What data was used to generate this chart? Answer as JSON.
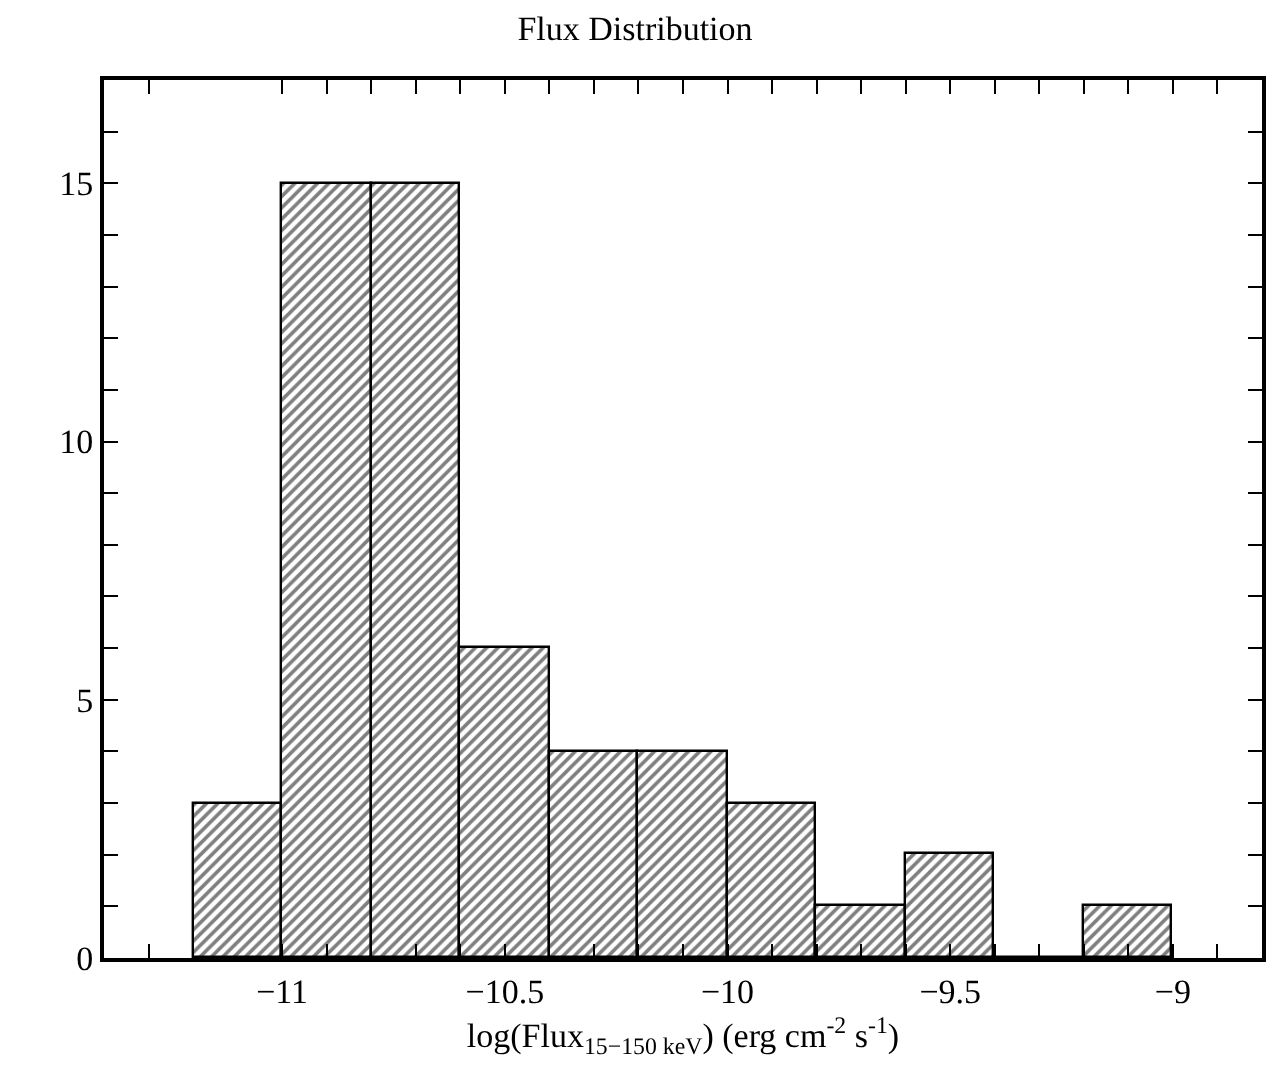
{
  "chart_data": {
    "type": "histogram",
    "title": "Flux Distribution",
    "xlabel": "log(Flux$_{15−150 keV}$) (erg cm$^{-2}$ s$^{-1}$)",
    "bins": [
      -11.2,
      -11.0,
      -10.8,
      -10.6,
      -10.4,
      -10.2,
      -10.0,
      -9.8,
      -9.6,
      -9.4,
      -9.2,
      -9.0
    ],
    "values": [
      3,
      15,
      15,
      6,
      4,
      4,
      3,
      1,
      2,
      0,
      1
    ],
    "color": "#000000",
    "xlim": [
      -11.4,
      -8.8
    ],
    "xticks": [
      {
        "value": -11.3,
        "label": null
      },
      {
        "value": -11,
        "label": "−11"
      },
      {
        "value": -10.9,
        "label": null
      },
      {
        "value": -10.8,
        "label": null
      },
      {
        "value": -10.7,
        "label": null
      },
      {
        "value": -10.6,
        "label": null
      },
      {
        "value": -10.5,
        "label": "−10.5"
      },
      {
        "value": -10.4,
        "label": null
      },
      {
        "value": -10.3,
        "label": null
      },
      {
        "value": -10.2,
        "label": null
      },
      {
        "value": -10.1,
        "label": null
      },
      {
        "value": -10,
        "label": "−10"
      },
      {
        "value": -9.9,
        "label": null
      },
      {
        "value": -9.8,
        "label": null
      },
      {
        "value": -9.7,
        "label": null
      },
      {
        "value": -9.6,
        "label": null
      },
      {
        "value": -9.5,
        "label": "−9.5"
      },
      {
        "value": -9.4,
        "label": null
      },
      {
        "value": -9.3,
        "label": null
      },
      {
        "value": -9.2,
        "label": null
      },
      {
        "value": -9.1,
        "label": null
      },
      {
        "value": -9,
        "label": "−9"
      },
      {
        "value": -8.9,
        "label": null
      }
    ],
    "ylim": [
      0,
      17
    ],
    "yticks": [
      0,
      {
        "value": 1,
        "label": null
      },
      {
        "value": 2,
        "label": null
      },
      {
        "value": 3,
        "label": null
      },
      {
        "value": 4,
        "label": null
      },
      5,
      {
        "value": 6,
        "label": null
      },
      {
        "value": 7,
        "label": null
      },
      {
        "value": 8,
        "label": null
      },
      {
        "value": 9,
        "label": null
      },
      10,
      {
        "value": 11,
        "label": null
      },
      {
        "value": 12,
        "label": null
      },
      {
        "value": 13,
        "label": null
      },
      {
        "value": 14,
        "label": null
      },
      15,
      {
        "value": 16,
        "label": null
      }
    ]
  }
}
